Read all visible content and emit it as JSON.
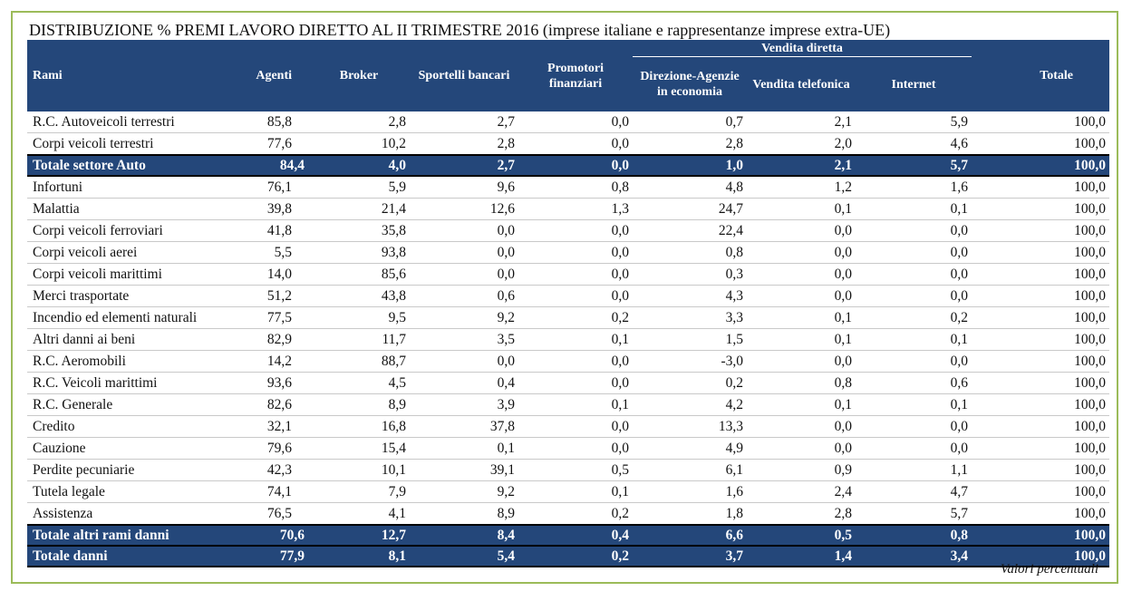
{
  "title": "DISTRIBUZIONE % PREMI LAVORO DIRETTO AL II TRIMESTRE 2016 (imprese italiane e rappresentanze imprese extra-UE)",
  "header": {
    "group_label": "Vendita diretta",
    "columns": [
      "Rami",
      "Agenti",
      "Broker",
      "Sportelli bancari",
      "Promotori finanziari",
      "Direzione-Agenzie in economia",
      "Vendita telefonica",
      "Internet",
      "Totale"
    ]
  },
  "rows": [
    {
      "label": "R.C. Autoveicoli terrestri",
      "values": [
        "85,8",
        "2,8",
        "2,7",
        "0,0",
        "0,7",
        "2,1",
        "5,9",
        "100,0"
      ],
      "total": false
    },
    {
      "label": "Corpi veicoli terrestri",
      "values": [
        "77,6",
        "10,2",
        "2,8",
        "0,0",
        "2,8",
        "2,0",
        "4,6",
        "100,0"
      ],
      "total": false
    },
    {
      "label": "Totale settore Auto",
      "values": [
        "84,4",
        "4,0",
        "2,7",
        "0,0",
        "1,0",
        "2,1",
        "5,7",
        "100,0"
      ],
      "total": true
    },
    {
      "label": "Infortuni",
      "values": [
        "76,1",
        "5,9",
        "9,6",
        "0,8",
        "4,8",
        "1,2",
        "1,6",
        "100,0"
      ],
      "total": false
    },
    {
      "label": "Malattia",
      "values": [
        "39,8",
        "21,4",
        "12,6",
        "1,3",
        "24,7",
        "0,1",
        "0,1",
        "100,0"
      ],
      "total": false
    },
    {
      "label": "Corpi veicoli ferroviari",
      "values": [
        "41,8",
        "35,8",
        "0,0",
        "0,0",
        "22,4",
        "0,0",
        "0,0",
        "100,0"
      ],
      "total": false
    },
    {
      "label": "Corpi veicoli aerei",
      "values": [
        "5,5",
        "93,8",
        "0,0",
        "0,0",
        "0,8",
        "0,0",
        "0,0",
        "100,0"
      ],
      "total": false
    },
    {
      "label": "Corpi veicoli marittimi",
      "values": [
        "14,0",
        "85,6",
        "0,0",
        "0,0",
        "0,3",
        "0,0",
        "0,0",
        "100,0"
      ],
      "total": false
    },
    {
      "label": "Merci trasportate",
      "values": [
        "51,2",
        "43,8",
        "0,6",
        "0,0",
        "4,3",
        "0,0",
        "0,0",
        "100,0"
      ],
      "total": false
    },
    {
      "label": "Incendio ed elementi naturali",
      "values": [
        "77,5",
        "9,5",
        "9,2",
        "0,2",
        "3,3",
        "0,1",
        "0,2",
        "100,0"
      ],
      "total": false
    },
    {
      "label": "Altri danni ai beni",
      "values": [
        "82,9",
        "11,7",
        "3,5",
        "0,1",
        "1,5",
        "0,1",
        "0,1",
        "100,0"
      ],
      "total": false
    },
    {
      "label": "R.C. Aeromobili",
      "values": [
        "14,2",
        "88,7",
        "0,0",
        "0,0",
        "-3,0",
        "0,0",
        "0,0",
        "100,0"
      ],
      "total": false
    },
    {
      "label": "R.C. Veicoli marittimi",
      "values": [
        "93,6",
        "4,5",
        "0,4",
        "0,0",
        "0,2",
        "0,8",
        "0,6",
        "100,0"
      ],
      "total": false
    },
    {
      "label": "R.C. Generale",
      "values": [
        "82,6",
        "8,9",
        "3,9",
        "0,1",
        "4,2",
        "0,1",
        "0,1",
        "100,0"
      ],
      "total": false
    },
    {
      "label": "Credito",
      "values": [
        "32,1",
        "16,8",
        "37,8",
        "0,0",
        "13,3",
        "0,0",
        "0,0",
        "100,0"
      ],
      "total": false
    },
    {
      "label": "Cauzione",
      "values": [
        "79,6",
        "15,4",
        "0,1",
        "0,0",
        "4,9",
        "0,0",
        "0,0",
        "100,0"
      ],
      "total": false
    },
    {
      "label": "Perdite pecuniarie",
      "values": [
        "42,3",
        "10,1",
        "39,1",
        "0,5",
        "6,1",
        "0,9",
        "1,1",
        "100,0"
      ],
      "total": false
    },
    {
      "label": "Tutela legale",
      "values": [
        "74,1",
        "7,9",
        "9,2",
        "0,1",
        "1,6",
        "2,4",
        "4,7",
        "100,0"
      ],
      "total": false
    },
    {
      "label": "Assistenza",
      "values": [
        "76,5",
        "4,1",
        "8,9",
        "0,2",
        "1,8",
        "2,8",
        "5,7",
        "100,0"
      ],
      "total": false
    },
    {
      "label": "Totale altri rami danni",
      "values": [
        "70,6",
        "12,7",
        "8,4",
        "0,4",
        "6,6",
        "0,5",
        "0,8",
        "100,0"
      ],
      "total": true
    },
    {
      "label": "Totale danni",
      "values": [
        "77,9",
        "8,1",
        "5,4",
        "0,2",
        "3,7",
        "1,4",
        "3,4",
        "100,0"
      ],
      "total": true
    }
  ],
  "footnote": "Valori percentuali",
  "colors": {
    "header_bg": "#24477a",
    "frame": "#9bbb59"
  }
}
